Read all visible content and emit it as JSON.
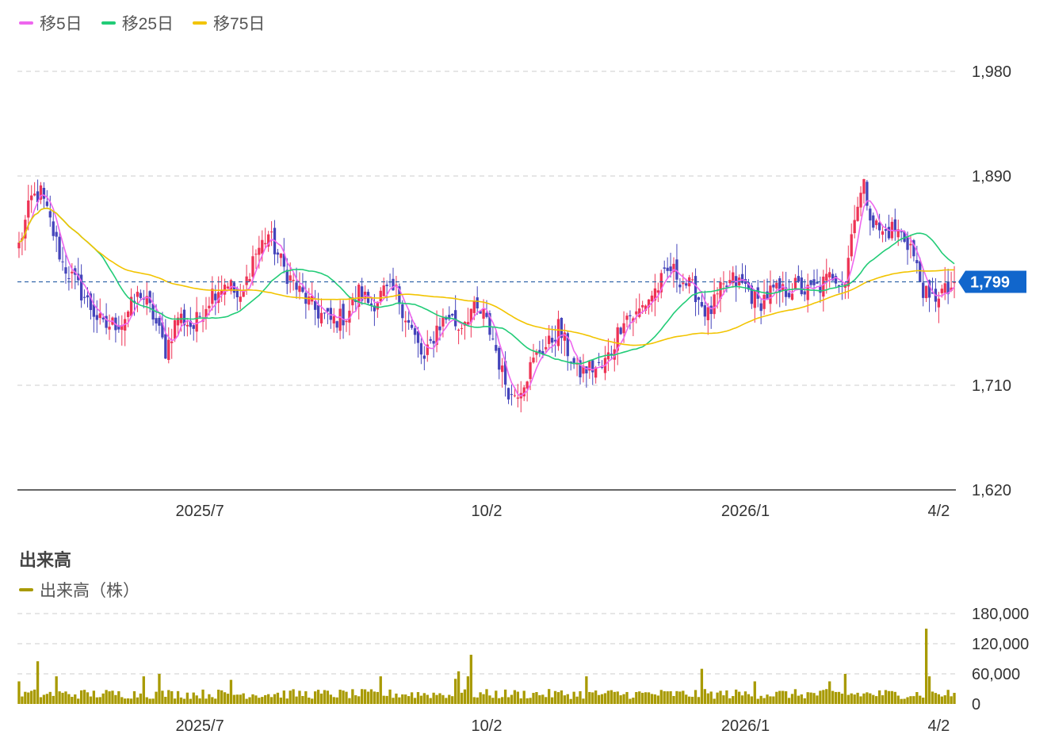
{
  "price_legend": [
    {
      "label": "移5日",
      "color": "#ee66ee"
    },
    {
      "label": "移25日",
      "color": "#22cc77"
    },
    {
      "label": "移75日",
      "color": "#f2c400"
    }
  ],
  "volume_panel": {
    "title": "出来高",
    "legend_label": "出来高（株）",
    "legend_color": "#a89a00"
  },
  "current_price_badge": "1,799",
  "chart_data": [
    {
      "type": "candlestick",
      "title": "",
      "x_ticks": [
        "2025/7",
        "10/2",
        "2026/1",
        "4/2"
      ],
      "y_ticks": [
        "1,980",
        "1,890",
        "1,710",
        "1,620"
      ],
      "ylim": [
        1620,
        1980
      ],
      "grid": true,
      "current_price": 1799,
      "colors": {
        "up": "#ee3355",
        "down": "#4444bb"
      },
      "anchors": [
        [
          0,
          1830
        ],
        [
          4,
          1870
        ],
        [
          7,
          1875
        ],
        [
          10,
          1850
        ],
        [
          14,
          1815
        ],
        [
          20,
          1790
        ],
        [
          27,
          1760
        ],
        [
          33,
          1765
        ],
        [
          39,
          1790
        ],
        [
          43,
          1770
        ],
        [
          47,
          1740
        ],
        [
          51,
          1770
        ],
        [
          56,
          1760
        ],
        [
          62,
          1790
        ],
        [
          67,
          1800
        ],
        [
          71,
          1780
        ],
        [
          75,
          1820
        ],
        [
          80,
          1840
        ],
        [
          85,
          1810
        ],
        [
          90,
          1790
        ],
        [
          95,
          1775
        ],
        [
          100,
          1765
        ],
        [
          105,
          1770
        ],
        [
          109,
          1790
        ],
        [
          113,
          1780
        ],
        [
          117,
          1790
        ],
        [
          121,
          1790
        ],
        [
          124,
          1770
        ],
        [
          127,
          1750
        ],
        [
          130,
          1730
        ],
        [
          134,
          1760
        ],
        [
          138,
          1770
        ],
        [
          141,
          1760
        ],
        [
          145,
          1775
        ],
        [
          149,
          1770
        ],
        [
          152,
          1750
        ],
        [
          155,
          1720
        ],
        [
          158,
          1700
        ],
        [
          161,
          1710
        ],
        [
          164,
          1725
        ],
        [
          167,
          1740
        ],
        [
          170,
          1745
        ],
        [
          173,
          1760
        ],
        [
          176,
          1740
        ],
        [
          179,
          1720
        ],
        [
          183,
          1725
        ],
        [
          187,
          1725
        ],
        [
          190,
          1740
        ],
        [
          194,
          1770
        ],
        [
          198,
          1770
        ],
        [
          202,
          1785
        ],
        [
          205,
          1795
        ],
        [
          209,
          1810
        ],
        [
          213,
          1800
        ],
        [
          217,
          1790
        ],
        [
          221,
          1770
        ],
        [
          225,
          1790
        ],
        [
          229,
          1800
        ],
        [
          233,
          1795
        ],
        [
          237,
          1780
        ],
        [
          241,
          1790
        ],
        [
          245,
          1790
        ],
        [
          249,
          1795
        ],
        [
          253,
          1790
        ],
        [
          257,
          1795
        ],
        [
          261,
          1805
        ],
        [
          265,
          1800
        ],
        [
          268,
          1860
        ],
        [
          271,
          1880
        ],
        [
          274,
          1850
        ],
        [
          277,
          1840
        ],
        [
          280,
          1845
        ],
        [
          283,
          1840
        ],
        [
          286,
          1830
        ],
        [
          289,
          1800
        ],
        [
          292,
          1780
        ],
        [
          295,
          1790
        ],
        [
          298,
          1790
        ],
        [
          300,
          1799
        ]
      ],
      "ma_periods": [
        5,
        25,
        75
      ],
      "ma_labels": [
        "移5日",
        "移25日",
        "移75日"
      ]
    },
    {
      "type": "bar",
      "title": "",
      "x_ticks": [
        "2025/7",
        "10/2",
        "2026/1",
        "4/2"
      ],
      "y_ticks": [
        "180,000",
        "120,000",
        "60,000",
        "0"
      ],
      "ylim": [
        0,
        180000
      ],
      "grid": true,
      "bar_color": "#a89a00",
      "typical_volume": 22000,
      "spikes": [
        [
          0,
          45000
        ],
        [
          6,
          85000
        ],
        [
          12,
          55000
        ],
        [
          40,
          55000
        ],
        [
          45,
          60000
        ],
        [
          68,
          48000
        ],
        [
          116,
          55000
        ],
        [
          140,
          50000
        ],
        [
          141,
          65000
        ],
        [
          144,
          55000
        ],
        [
          145,
          98000
        ],
        [
          182,
          55000
        ],
        [
          219,
          70000
        ],
        [
          236,
          45000
        ],
        [
          260,
          45000
        ],
        [
          265,
          60000
        ],
        [
          291,
          150000
        ],
        [
          292,
          55000
        ]
      ]
    }
  ]
}
